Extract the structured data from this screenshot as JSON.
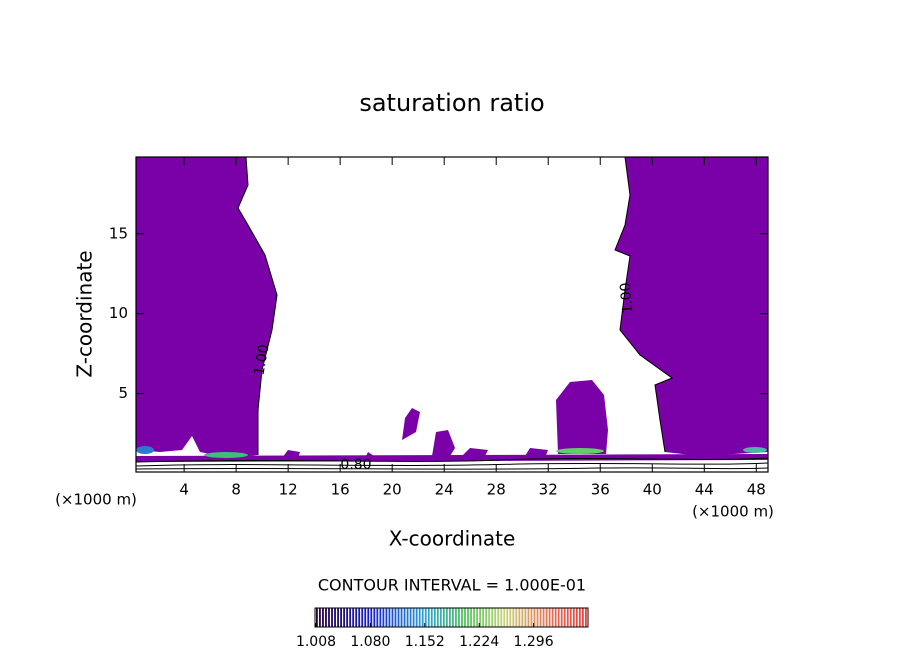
{
  "chart_data": {
    "type": "contour",
    "title": "saturation ratio",
    "x_label": "X-coordinate",
    "y_label": "Z-coordinate",
    "x_unit": "(×1000 m)",
    "xlim": [
      0.3,
      48.9
    ],
    "xticks": [
      4,
      8,
      12,
      16,
      20,
      24,
      28,
      32,
      36,
      40,
      44,
      48
    ],
    "ylim": [
      0.1,
      19.8
    ],
    "yticks": [
      5,
      10,
      15
    ],
    "contour_labels": [
      "1.00",
      "1.00",
      "0.80"
    ],
    "contour_interval": "CONTOUR INTERVAL = 1.000E-01",
    "colorbar_lim": [
      1.008,
      1.368
    ],
    "colorbar_ticks": [
      1.008,
      {
        "value": 1.08,
        "label": "1.080"
      },
      1.152,
      1.224,
      1.296
    ],
    "color": "#7a00a8"
  }
}
